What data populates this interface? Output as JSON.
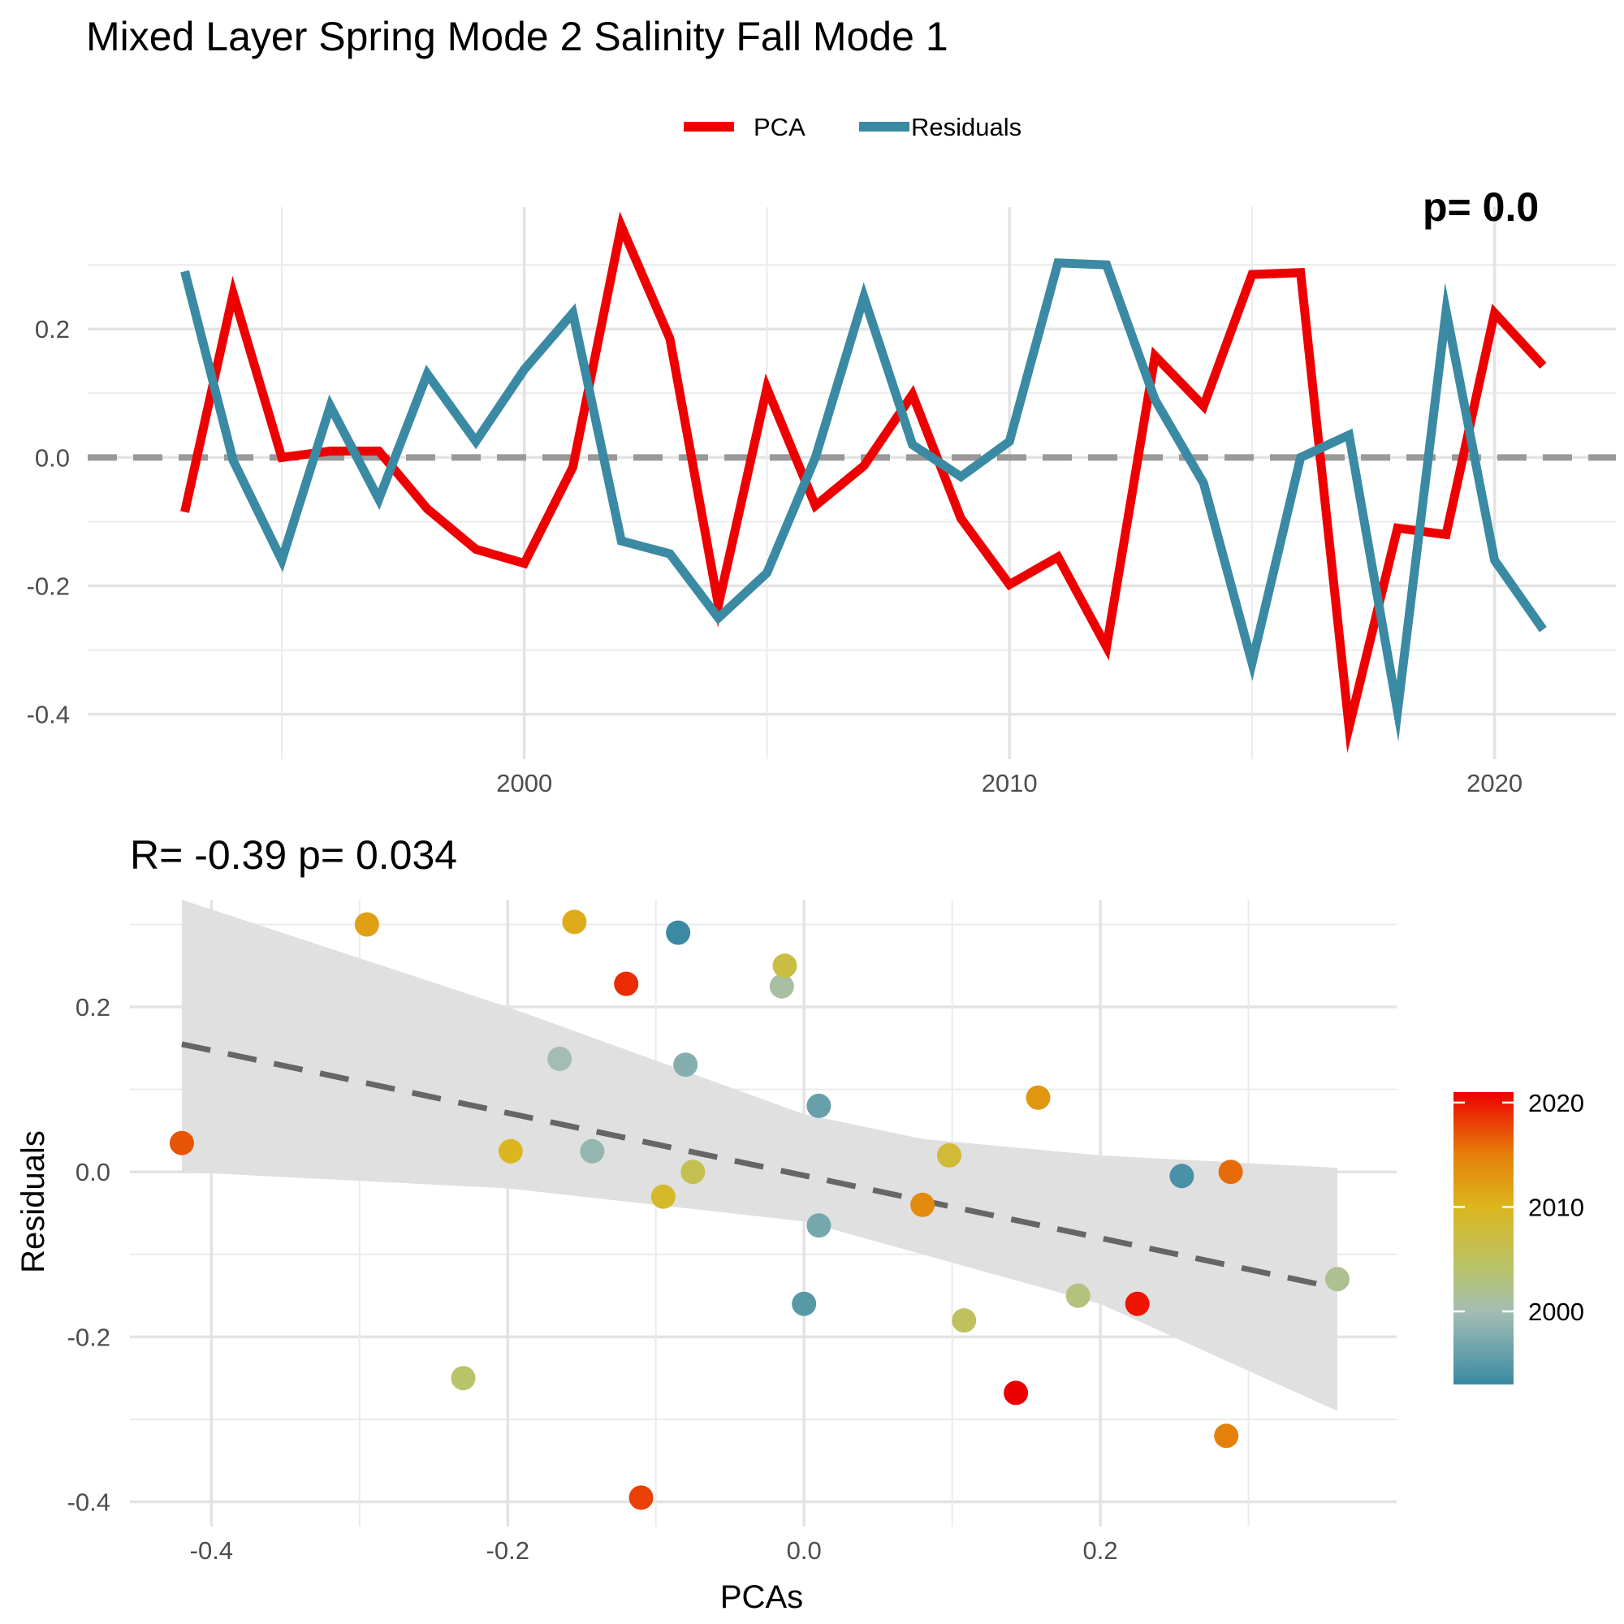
{
  "title": "Mixed Layer Spring Mode 2 Salinity Fall Mode 1",
  "chart_data": [
    {
      "type": "line",
      "panel": "timeseries",
      "corner_annotation": "p= 0.0",
      "legend": {
        "position": "top",
        "entries": [
          "PCA",
          "Residuals"
        ]
      },
      "x": [
        1993,
        1994,
        1995,
        1996,
        1997,
        1998,
        1999,
        2000,
        2001,
        2002,
        2003,
        2004,
        2005,
        2006,
        2007,
        2008,
        2009,
        2010,
        2011,
        2012,
        2013,
        2014,
        2015,
        2016,
        2017,
        2018,
        2019,
        2020,
        2021
      ],
      "xlim": [
        1991,
        2022.5
      ],
      "x_ticks": [
        2000,
        2010,
        2020
      ],
      "x_tick_labels": [
        "2000",
        "2010",
        "2020"
      ],
      "ylim": [
        -0.47,
        0.39
      ],
      "y_ticks": [
        -0.4,
        -0.2,
        0.0,
        0.2
      ],
      "y_tick_labels": [
        "-0.4",
        "-0.2",
        "0.0",
        "0.2"
      ],
      "reference_line": 0,
      "grid": true,
      "series": [
        {
          "name": "PCA",
          "color": "#ee0000",
          "values": [
            -0.085,
            0.255,
            0.0,
            0.01,
            0.01,
            -0.08,
            -0.143,
            -0.165,
            -0.015,
            0.36,
            0.185,
            -0.23,
            0.108,
            -0.075,
            -0.013,
            0.098,
            -0.095,
            -0.198,
            -0.155,
            -0.295,
            0.158,
            0.08,
            0.285,
            0.288,
            -0.42,
            -0.11,
            -0.12,
            0.225,
            0.143
          ]
        },
        {
          "name": "Residuals",
          "color": "#3a8aa3",
          "values": [
            0.29,
            -0.005,
            -0.16,
            0.08,
            -0.065,
            0.13,
            0.025,
            0.137,
            0.225,
            -0.13,
            -0.15,
            -0.25,
            -0.18,
            0.0,
            0.25,
            0.02,
            -0.03,
            0.025,
            0.303,
            0.3,
            0.09,
            -0.04,
            -0.32,
            0.0,
            0.035,
            -0.395,
            0.228,
            -0.16,
            -0.268
          ]
        }
      ]
    },
    {
      "type": "scatter",
      "panel": "scatter",
      "subtitle": "R= -0.39  p= 0.034",
      "xlabel": "PCAs",
      "ylabel": "Residuals",
      "xlim": [
        -0.455,
        0.4
      ],
      "ylim": [
        -0.43,
        0.33
      ],
      "x_ticks": [
        -0.4,
        -0.2,
        0.0,
        0.2
      ],
      "x_tick_labels": [
        "-0.4",
        "-0.2",
        "0.0",
        "0.2"
      ],
      "y_ticks": [
        -0.4,
        -0.2,
        0.0,
        0.2
      ],
      "y_tick_labels": [
        "-0.4",
        "-0.2",
        "0.0",
        "0.2"
      ],
      "grid": true,
      "fit": {
        "intercept": -0.0044,
        "slope": -0.3792,
        "x_range": [
          -0.42,
          0.36
        ],
        "band_x": [
          -0.42,
          -0.2,
          0.0,
          0.08,
          0.2,
          0.36
        ],
        "band_upper": [
          0.33,
          0.2,
          0.07,
          0.04,
          0.02,
          0.005
        ],
        "band_lower": [
          0.0,
          -0.02,
          -0.06,
          -0.1,
          -0.16,
          -0.29
        ],
        "line_color": "#666666",
        "band_color": "#e0e0e0"
      },
      "colorbar": {
        "range": [
          1993,
          2021
        ],
        "ticks": [
          2000,
          2010,
          2020
        ],
        "tick_labels": [
          "2000",
          "2010",
          "2020"
        ],
        "stops": [
          {
            "year": 1993,
            "color": "#3a8aa3"
          },
          {
            "year": 2000,
            "color": "#a3bdb3"
          },
          {
            "year": 2004,
            "color": "#b8c36a"
          },
          {
            "year": 2010,
            "color": "#dcb61e"
          },
          {
            "year": 2015,
            "color": "#e5800a"
          },
          {
            "year": 2021,
            "color": "#ee0000"
          }
        ]
      },
      "points": [
        {
          "year": 1993,
          "x": -0.085,
          "y": 0.29
        },
        {
          "year": 1994,
          "x": 0.255,
          "y": -0.005
        },
        {
          "year": 1995,
          "x": 0.0,
          "y": -0.16
        },
        {
          "year": 1996,
          "x": 0.01,
          "y": 0.08
        },
        {
          "year": 1997,
          "x": 0.01,
          "y": -0.065
        },
        {
          "year": 1998,
          "x": -0.08,
          "y": 0.13
        },
        {
          "year": 1999,
          "x": -0.143,
          "y": 0.025
        },
        {
          "year": 2000,
          "x": -0.165,
          "y": 0.137
        },
        {
          "year": 2001,
          "x": -0.015,
          "y": 0.225
        },
        {
          "year": 2002,
          "x": 0.36,
          "y": -0.13
        },
        {
          "year": 2003,
          "x": 0.185,
          "y": -0.15
        },
        {
          "year": 2004,
          "x": -0.23,
          "y": -0.25
        },
        {
          "year": 2005,
          "x": 0.108,
          "y": -0.18
        },
        {
          "year": 2006,
          "x": -0.075,
          "y": 0.0
        },
        {
          "year": 2007,
          "x": -0.013,
          "y": 0.25
        },
        {
          "year": 2008,
          "x": 0.098,
          "y": 0.02
        },
        {
          "year": 2009,
          "x": -0.095,
          "y": -0.03
        },
        {
          "year": 2010,
          "x": -0.198,
          "y": 0.025
        },
        {
          "year": 2011,
          "x": -0.155,
          "y": 0.303
        },
        {
          "year": 2012,
          "x": -0.295,
          "y": 0.3
        },
        {
          "year": 2013,
          "x": 0.158,
          "y": 0.09
        },
        {
          "year": 2014,
          "x": 0.08,
          "y": -0.04
        },
        {
          "year": 2015,
          "x": 0.285,
          "y": -0.32
        },
        {
          "year": 2016,
          "x": 0.288,
          "y": 0.0
        },
        {
          "year": 2017,
          "x": -0.42,
          "y": 0.035
        },
        {
          "year": 2018,
          "x": -0.11,
          "y": -0.395
        },
        {
          "year": 2019,
          "x": -0.12,
          "y": 0.228
        },
        {
          "year": 2020,
          "x": 0.225,
          "y": -0.16
        },
        {
          "year": 2021,
          "x": 0.143,
          "y": -0.268
        }
      ]
    }
  ]
}
